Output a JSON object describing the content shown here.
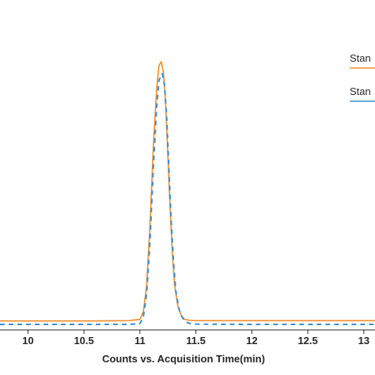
{
  "chart_data": {
    "type": "line",
    "title": "",
    "xlabel": "Counts vs. Acquisition Time(min)",
    "ylabel": "",
    "xlim": [
      9.75,
      13.1
    ],
    "ylim": [
      0,
      1.0
    ],
    "x_ticks": [
      10,
      10.5,
      11,
      11.5,
      12,
      12.5,
      13
    ],
    "x_tick_labels": [
      "10",
      "10.5",
      "11",
      "11.5",
      "12",
      "12.5",
      "13"
    ],
    "legend_placement": "top-right",
    "grid": false,
    "series": [
      {
        "name": "Stan",
        "color": "#f28c28",
        "x": [
          9.75,
          10.0,
          10.5,
          10.9,
          11.0,
          11.03,
          11.06,
          11.09,
          11.12,
          11.15,
          11.17,
          11.19,
          11.21,
          11.23,
          11.25,
          11.27,
          11.29,
          11.31,
          11.34,
          11.37,
          11.4,
          11.45,
          11.5,
          12.0,
          12.5,
          13.0,
          13.1
        ],
        "y": [
          0.016,
          0.016,
          0.016,
          0.017,
          0.022,
          0.05,
          0.15,
          0.38,
          0.68,
          0.9,
          0.985,
          1.0,
          0.96,
          0.84,
          0.64,
          0.44,
          0.27,
          0.15,
          0.07,
          0.035,
          0.022,
          0.018,
          0.017,
          0.017,
          0.017,
          0.017,
          0.017
        ]
      },
      {
        "name": "Stan",
        "color": "#3c8fcf",
        "dashed": true,
        "x": [
          9.75,
          10.0,
          10.5,
          10.9,
          11.0,
          11.03,
          11.06,
          11.09,
          11.12,
          11.15,
          11.17,
          11.2,
          11.22,
          11.24,
          11.26,
          11.28,
          11.3,
          11.32,
          11.35,
          11.38,
          11.41,
          11.45,
          11.5,
          12.0,
          12.5,
          13.0,
          13.1
        ],
        "y": [
          0.003,
          0.003,
          0.003,
          0.003,
          0.006,
          0.03,
          0.12,
          0.32,
          0.6,
          0.83,
          0.93,
          0.955,
          0.91,
          0.78,
          0.58,
          0.39,
          0.24,
          0.13,
          0.06,
          0.028,
          0.012,
          0.006,
          0.004,
          0.003,
          0.003,
          0.003,
          0.003
        ]
      }
    ]
  }
}
